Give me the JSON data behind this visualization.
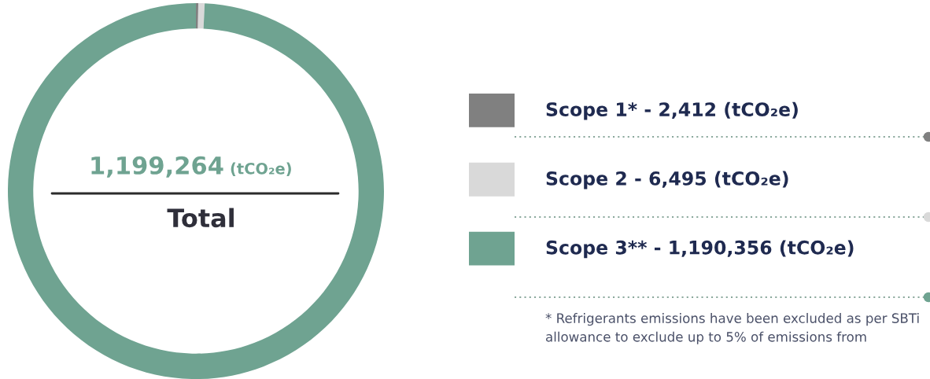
{
  "chart_data": {
    "type": "donut",
    "categories": [
      "Scope 1*",
      "Scope 2",
      "Scope 3**"
    ],
    "values": [
      2412,
      6495,
      1190356
    ],
    "value_labels": [
      "2,412 (tCO₂e)",
      "6,495 (tCO₂e)",
      "1,190,356 (tCO₂e)"
    ],
    "colors": [
      "#808080",
      "#d9d9d9",
      "#6fa391"
    ],
    "legend": "right",
    "annotations": [
      "1,199,264 (tCO₂e)",
      "Total",
      "* Refrigerants emissions have been excluded as per SBTi allowance to exclude up to 5% of emissions from"
    ]
  }
}
